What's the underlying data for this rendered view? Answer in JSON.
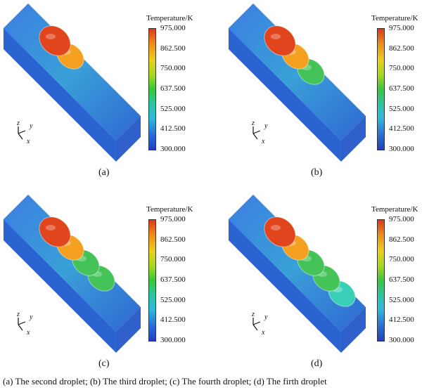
{
  "legend": {
    "title": "Temperature/K",
    "ticks": [
      "975.000",
      "862.500",
      "750.000",
      "637.500",
      "525.000",
      "412.500",
      "300.000"
    ]
  },
  "axes_labels": {
    "z": "z",
    "y": "y",
    "x": "x"
  },
  "panels": [
    {
      "label": "(a)",
      "droplets": 2
    },
    {
      "label": "(b)",
      "droplets": 3
    },
    {
      "label": "(c)",
      "droplets": 4
    },
    {
      "label": "(d)",
      "droplets": 5
    }
  ],
  "caption": "(a) The second droplet; (b) The third droplet; (c) The fourth droplet; (d) The firth droplet",
  "colors": {
    "substrate": "#2f6fd6",
    "hot": "#e0451e",
    "warm": "#f5a020",
    "mid": "#44c458",
    "cool": "#3ad0b8"
  }
}
